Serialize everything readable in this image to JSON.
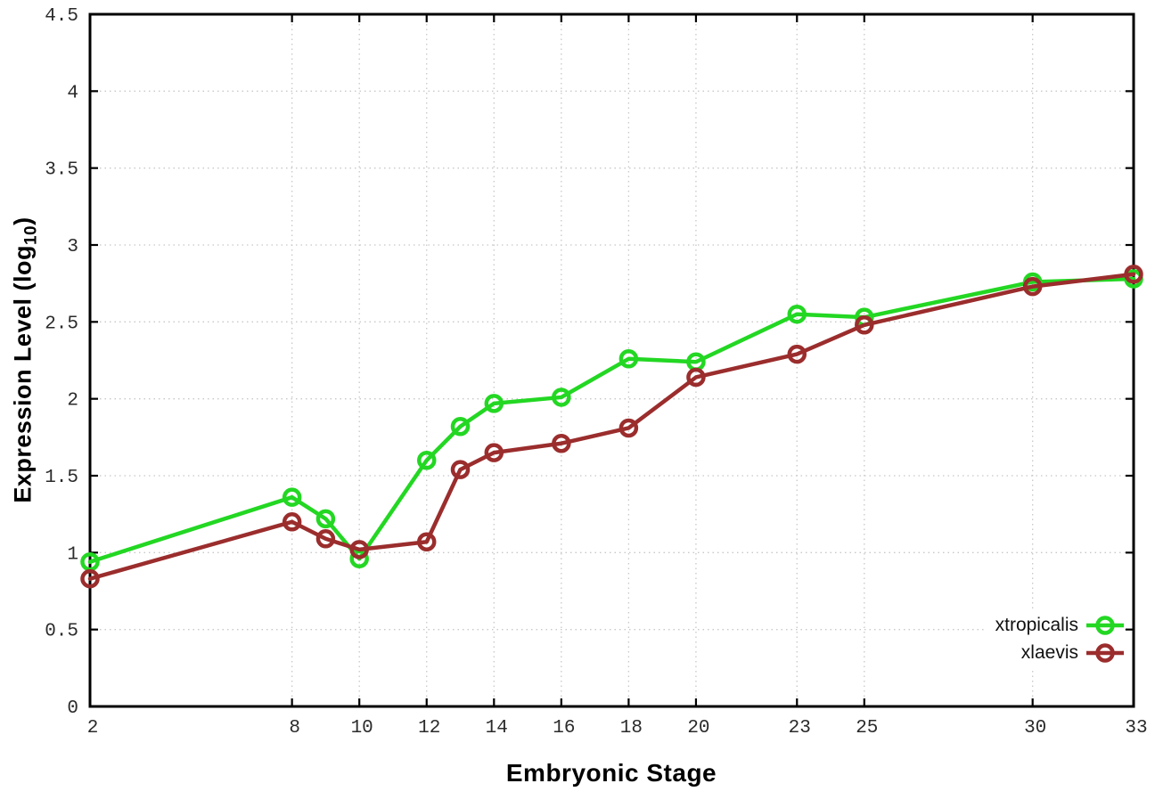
{
  "chart_data": {
    "type": "line",
    "title": "",
    "xlabel": "Embryonic Stage",
    "ylabel": "Expression Level (log10)",
    "ylabel_parts": {
      "pre": "Expression Level (log",
      "sub": "10",
      "post": ")"
    },
    "x": [
      2,
      8,
      9,
      10,
      12,
      13,
      14,
      16,
      18,
      20,
      23,
      25,
      30,
      33
    ],
    "xticks": [
      2,
      8,
      10,
      12,
      14,
      16,
      18,
      20,
      23,
      25,
      30,
      33
    ],
    "yticks": [
      0,
      0.5,
      1,
      1.5,
      2,
      2.5,
      3,
      3.5,
      4,
      4.5
    ],
    "xlim": [
      2,
      33
    ],
    "ylim": [
      0,
      4.5
    ],
    "grid": true,
    "grid_style": "dotted",
    "legend_position": "bottom-right-inside",
    "marker": "open-circle",
    "series": [
      {
        "name": "xtropicalis",
        "color": "#23d723",
        "values": [
          0.94,
          1.36,
          1.22,
          0.96,
          1.6,
          1.82,
          1.97,
          2.01,
          2.26,
          2.24,
          2.55,
          2.53,
          2.76,
          2.78
        ]
      },
      {
        "name": "xlaevis",
        "color": "#9b2d2d",
        "values": [
          0.83,
          1.2,
          1.09,
          1.02,
          1.07,
          1.54,
          1.65,
          1.71,
          1.81,
          2.14,
          2.29,
          2.48,
          2.73,
          2.81
        ]
      }
    ],
    "colors": {
      "grid": "#c8c8c8",
      "axis": "#000000",
      "tick_text": "#2b2b2b"
    }
  }
}
